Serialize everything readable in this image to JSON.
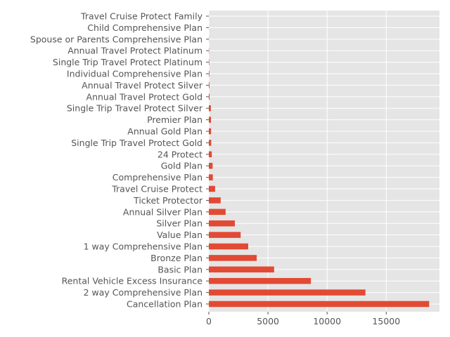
{
  "chart_data": {
    "type": "bar",
    "orientation": "horizontal",
    "title": "",
    "xlabel": "",
    "ylabel": "",
    "xlim": [
      0,
      19500
    ],
    "x_ticks": [
      0,
      5000,
      10000,
      15000
    ],
    "x_tick_labels": [
      "0",
      "5000",
      "10000",
      "15000"
    ],
    "grid": true,
    "legend": "none",
    "colors": {
      "bar": "#E24A33",
      "plot_background": "#E5E5E5",
      "grid": "#FFFFFF",
      "tick_text": "#555555"
    },
    "categories": [
      "Cancellation Plan",
      "2 way Comprehensive Plan",
      "Rental Vehicle Excess Insurance",
      "Basic Plan",
      "Bronze Plan",
      "1 way Comprehensive Plan",
      "Value Plan",
      "Silver Plan",
      "Annual Silver Plan",
      "Ticket Protector",
      "Travel Cruise Protect",
      "Comprehensive Plan",
      "Gold Plan",
      "24 Protect",
      "Single Trip Travel Protect Gold",
      "Annual Gold Plan",
      "Premier Plan",
      "Single Trip Travel Protect Silver",
      "Annual Travel Protect Gold",
      "Annual Travel Protect Silver",
      "Individual Comprehensive Plan",
      "Single Trip Travel Protect Platinum",
      "Annual Travel Protect Platinum",
      "Spouse or Parents Comprehensive Plan",
      "Child Comprehensive Plan",
      "Travel Cruise Protect Family"
    ],
    "values": [
      18630,
      13240,
      8630,
      5520,
      4050,
      3330,
      2690,
      2200,
      1420,
      1000,
      530,
      340,
      320,
      250,
      200,
      190,
      180,
      170,
      60,
      50,
      40,
      30,
      20,
      10,
      5,
      3
    ]
  }
}
